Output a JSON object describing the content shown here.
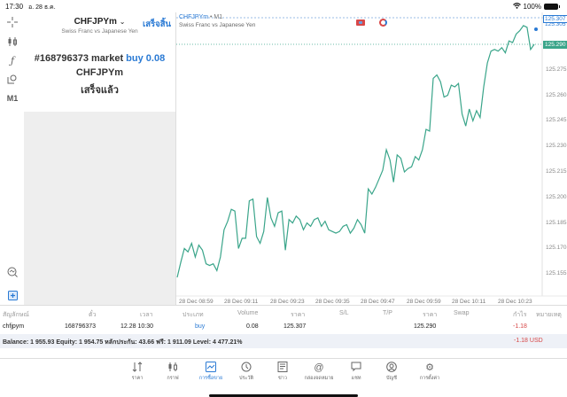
{
  "status_bar": {
    "time": "17:30",
    "date": "อ. 28 ธ.ค.",
    "battery": "100%"
  },
  "toolbar": {
    "items": [
      {
        "name": "crosshair",
        "glyph": "┼"
      },
      {
        "name": "indicators",
        "glyph": "┃┃"
      },
      {
        "name": "function",
        "glyph": "ƒ"
      },
      {
        "name": "objects",
        "glyph": "⌕"
      },
      {
        "name": "timeframe",
        "glyph": "M1"
      }
    ],
    "bottom": [
      {
        "name": "chart-search",
        "glyph": "⌕"
      },
      {
        "name": "new-order",
        "glyph": "+"
      }
    ]
  },
  "order_panel": {
    "symbol": "CHFJPYm",
    "description": "Swiss Franc vs Japanese Yen",
    "done_label": "เสร็จสิ้น",
    "order_prefix": "#168796373 market",
    "order_side": "buy 0.08",
    "order_symbol": "CHFJPYm",
    "order_status": "เสร็จแล้ว"
  },
  "chart": {
    "symbol": "CHFJPYm",
    "separator": "•",
    "timeframe": "M1",
    "description": "Swiss Franc vs Japanese Yen",
    "ask_price": "125.307",
    "ask_price_hidden": "125.305",
    "bid_price": "125.290",
    "line_color": "#3aa58a"
  },
  "chart_data": {
    "type": "line",
    "title": "CHFJPYm • M1",
    "subtitle": "Swiss Franc vs Japanese Yen",
    "xlabel": "",
    "ylabel": "",
    "x_ticks": [
      "28 Dec 08:59",
      "28 Dec 09:11",
      "28 Dec 09:23",
      "28 Dec 09:35",
      "28 Dec 09:47",
      "28 Dec 09:59",
      "28 Dec 10:11",
      "28 Dec 10:23"
    ],
    "y_ticks": [
      "125.290",
      "125.275",
      "125.260",
      "125.245",
      "125.230",
      "125.215",
      "125.200",
      "125.185",
      "125.170",
      "125.155"
    ],
    "ylim": [
      125.145,
      125.307
    ],
    "grid": false,
    "horizontal_lines": {
      "ask": 125.307,
      "bid": 125.29
    },
    "series": [
      {
        "name": "CHFJPYm Bid",
        "values": [
          125.153,
          125.162,
          125.17,
          125.168,
          125.173,
          125.165,
          125.172,
          125.169,
          125.161,
          125.16,
          125.161,
          125.157,
          125.165,
          125.181,
          125.186,
          125.193,
          125.192,
          125.17,
          125.176,
          125.176,
          125.198,
          125.199,
          125.177,
          125.173,
          125.18,
          125.2,
          125.188,
          125.183,
          125.191,
          125.192,
          125.169,
          125.187,
          125.185,
          125.189,
          125.187,
          125.181,
          125.185,
          125.183,
          125.187,
          125.188,
          125.183,
          125.186,
          125.181,
          125.18,
          125.179,
          125.18,
          125.183,
          125.184,
          125.179,
          125.182,
          125.187,
          125.184,
          125.179,
          125.205,
          125.202,
          125.206,
          125.211,
          125.216,
          125.228,
          125.222,
          125.209,
          125.225,
          125.223,
          125.215,
          125.217,
          125.218,
          125.224,
          125.222,
          125.228,
          125.24,
          125.239,
          125.27,
          125.272,
          125.268,
          125.259,
          125.26,
          125.266,
          125.265,
          125.267,
          125.249,
          125.242,
          125.252,
          125.245,
          125.251,
          125.247,
          125.265,
          125.279,
          125.286,
          125.287,
          125.286,
          125.288,
          125.285,
          125.292,
          125.291,
          125.296,
          125.298,
          125.301,
          125.3,
          125.287,
          125.29
        ]
      }
    ]
  },
  "positions": {
    "headers": [
      "สัญลักษณ์",
      "ตั๋ว",
      "เวลา",
      "ประเภท",
      "Volume",
      "ราคา",
      "S/L",
      "T/P",
      "ราคา",
      "Swap",
      "กำไร",
      "หมายเหตุ"
    ],
    "rows": [
      {
        "symbol": "chfjpym",
        "ticket": "168796373",
        "time": "12.28 10:30",
        "type": "buy",
        "volume": "0.08",
        "open_price": "125.307",
        "sl": "",
        "tp": "",
        "price": "125.290",
        "swap": "",
        "profit": "-1.18",
        "comment": ""
      }
    ],
    "balance_text": "Balance: 1 955.93 Equity: 1 954.75 หลักประกัน: 43.66 ฟรี: 1 911.09 Level: 4 477.21%",
    "total_profit": "-1.18",
    "currency": "USD"
  },
  "tabbar": {
    "items": [
      {
        "name": "quotes",
        "label": "ราคา",
        "glyph": "⇅"
      },
      {
        "name": "charts",
        "label": "กราฟ",
        "glyph": "┃┃"
      },
      {
        "name": "trade",
        "label": "การซื้อขาย",
        "glyph": "📈",
        "active": true
      },
      {
        "name": "history",
        "label": "ประวัติ",
        "glyph": "◷"
      },
      {
        "name": "news",
        "label": "ข่าว",
        "glyph": "▤"
      },
      {
        "name": "mailbox",
        "label": "กล่องจดหมาย",
        "glyph": "@"
      },
      {
        "name": "chat",
        "label": "แชท",
        "glyph": "▭"
      },
      {
        "name": "account",
        "label": "บัญชี",
        "glyph": "◉"
      },
      {
        "name": "settings",
        "label": "การตั้งค่า",
        "glyph": "⚙"
      }
    ]
  }
}
